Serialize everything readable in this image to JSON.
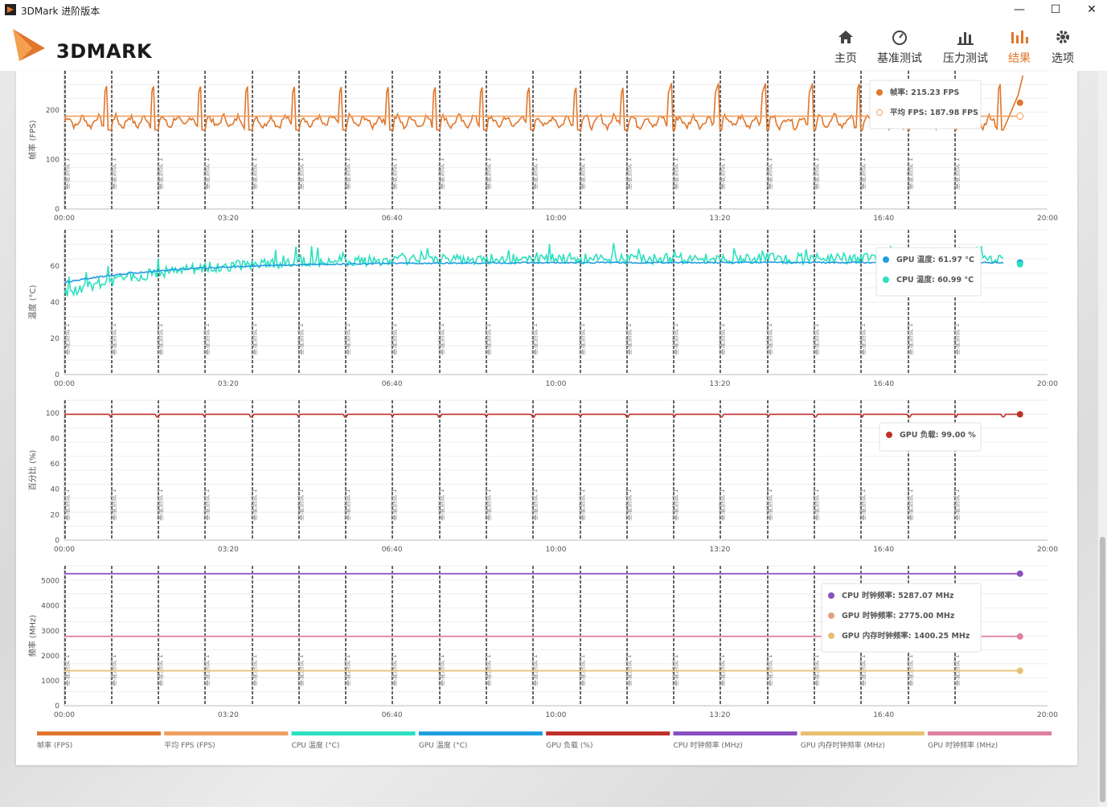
{
  "window": {
    "title": "3DMark 进阶版本",
    "min": "—",
    "max": "☐",
    "close": "✕"
  },
  "header": {
    "logo_text": "3DMARK",
    "nav": [
      {
        "label": "主页",
        "icon": "home-icon"
      },
      {
        "label": "基准测试",
        "icon": "gauge-icon"
      },
      {
        "label": "压力测试",
        "icon": "bar-chart-icon"
      },
      {
        "label": "结果",
        "icon": "results-chart-icon",
        "active": true
      },
      {
        "label": "选项",
        "icon": "gear-icon"
      }
    ]
  },
  "colors": {
    "fps": "#e0762c",
    "avg_fps": "#f0a060",
    "cpu_temp": "#2de0c0",
    "gpu_temp": "#1e9ee0",
    "gpu_load": "#c0302c",
    "cpu_clock": "#8a4fbf",
    "gpu_mem_clock": "#e8c070",
    "gpu_clock": "#e080a0",
    "accent": "#e0762c"
  },
  "x_ticks": [
    "00:00",
    "03:20",
    "06:40",
    "10:00",
    "13:20",
    "16:40",
    "20:00"
  ],
  "marker_label": "基准测试 1",
  "legend": [
    {
      "label": "帧率 (FPS)",
      "color": "#e0762c"
    },
    {
      "label": "平均 FPS (FPS)",
      "color": "#f0a060"
    },
    {
      "label": "CPU 温度 (°C)",
      "color": "#2de0c0"
    },
    {
      "label": "GPU 温度 (°C)",
      "color": "#1e9ee0"
    },
    {
      "label": "GPU 负载 (%)",
      "color": "#c0302c"
    },
    {
      "label": "CPU 时钟频率 (MHz)",
      "color": "#8a4fbf"
    },
    {
      "label": "GPU 内存时钟频率 (MHz)",
      "color": "#e8c070"
    },
    {
      "label": "GPU 时钟频率 (MHz)",
      "color": "#e080a0"
    }
  ],
  "chart_data": [
    {
      "type": "line",
      "ylabel": "帧率 (FPS)",
      "ylim": [
        0,
        280
      ],
      "yticks": [
        0,
        100,
        200
      ],
      "series": [
        {
          "name": "帧率",
          "unit": "FPS",
          "pattern": "spiky",
          "base": 170,
          "peak": 255,
          "final": 215.23
        },
        {
          "name": "平均 FPS",
          "unit": "FPS",
          "constant": 187.98
        }
      ],
      "tooltip": [
        {
          "label": "帧率: 215.23 FPS",
          "color": "#e0762c",
          "filled": true
        },
        {
          "label": "平均 FPS: 187.98 FPS",
          "color": "#f0a060",
          "filled": false
        }
      ]
    },
    {
      "type": "line",
      "ylabel": "温度 (°C)",
      "ylim": [
        0,
        80
      ],
      "yticks": [
        0,
        20,
        40,
        60
      ],
      "series": [
        {
          "name": "GPU 温度",
          "unit": "°C",
          "start": 51,
          "end": 61.97
        },
        {
          "name": "CPU 温度",
          "unit": "°C",
          "start": 44,
          "end": 60.99
        }
      ],
      "tooltip": [
        {
          "label": "GPU 温度: 61.97 °C",
          "color": "#1e9ee0",
          "filled": true
        },
        {
          "label": "CPU 温度: 60.99 °C",
          "color": "#2de0c0",
          "filled": true
        }
      ]
    },
    {
      "type": "line",
      "ylabel": "百分比 (%)",
      "ylim": [
        0,
        110
      ],
      "yticks": [
        0,
        20,
        40,
        60,
        80,
        100
      ],
      "series": [
        {
          "name": "GPU 负载",
          "unit": "%",
          "constant": 99.0
        }
      ],
      "tooltip": [
        {
          "label": "GPU 负载: 99.00 %",
          "color": "#c0302c",
          "filled": true
        }
      ]
    },
    {
      "type": "line",
      "ylabel": "频率 (MHz)",
      "ylim": [
        0,
        5600
      ],
      "yticks": [
        0,
        1000,
        2000,
        3000,
        4000,
        5000
      ],
      "series": [
        {
          "name": "CPU 时钟频率",
          "unit": "MHz",
          "constant": 5287.07
        },
        {
          "name": "GPU 时钟频率",
          "unit": "MHz",
          "constant": 2775.0
        },
        {
          "name": "GPU 内存时钟频率",
          "unit": "MHz",
          "constant": 1400.25
        }
      ],
      "tooltip": [
        {
          "label": "CPU 时钟频率: 5287.07 MHz",
          "color": "#8a4fbf",
          "filled": true
        },
        {
          "label": "GPU 时钟频率: 2775.00 MHz",
          "color": "#e8a080",
          "filled": true
        },
        {
          "label": "GPU 内存时钟频率: 1400.25 MHz",
          "color": "#e8c070",
          "filled": true
        }
      ]
    }
  ]
}
